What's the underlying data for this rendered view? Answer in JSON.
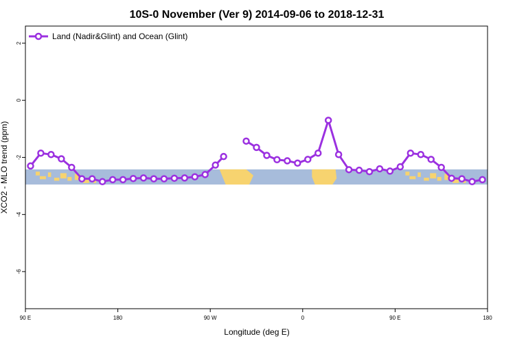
{
  "chart_data": {
    "type": "line",
    "title": "10S-0 November (Ver 9)   2014-09-06 to 2018-12-31",
    "xlabel": "Longitude (deg E)",
    "ylabel": "XCO2 - MLO trend (ppm)",
    "xlim": [
      90,
      540
    ],
    "ylim": [
      -7.3,
      2.6
    ],
    "x_ticks": [
      {
        "value": 90,
        "label": "90 E"
      },
      {
        "value": 180,
        "label": "180"
      },
      {
        "value": 270,
        "label": "90 W"
      },
      {
        "value": 360,
        "label": "0"
      },
      {
        "value": 450,
        "label": "90 E"
      },
      {
        "value": 540,
        "label": "180"
      }
    ],
    "y_ticks": [
      {
        "value": 2,
        "label": "2"
      },
      {
        "value": 0,
        "label": "0"
      },
      {
        "value": -2,
        "label": "-2"
      },
      {
        "value": -4,
        "label": "-4"
      },
      {
        "value": -6,
        "label": "-6"
      }
    ],
    "grid": false,
    "legend_position": "top-left",
    "map_band": {
      "y_top": -2.42,
      "y_bottom": -2.95
    },
    "series": [
      {
        "name": "Land (Nadir&Glint) and Ocean (Glint)",
        "color": "#9b30e0",
        "segments": [
          [
            {
              "x": 95,
              "y": -2.3
            },
            {
              "x": 105,
              "y": -1.85
            },
            {
              "x": 115,
              "y": -1.9
            },
            {
              "x": 125,
              "y": -2.05
            },
            {
              "x": 135,
              "y": -2.35
            },
            {
              "x": 145,
              "y": -2.75
            },
            {
              "x": 155,
              "y": -2.75
            },
            {
              "x": 165,
              "y": -2.85
            },
            {
              "x": 175,
              "y": -2.78
            },
            {
              "x": 185,
              "y": -2.78
            },
            {
              "x": 195,
              "y": -2.74
            },
            {
              "x": 205,
              "y": -2.72
            },
            {
              "x": 215,
              "y": -2.75
            },
            {
              "x": 225,
              "y": -2.75
            },
            {
              "x": 235,
              "y": -2.73
            },
            {
              "x": 245,
              "y": -2.72
            },
            {
              "x": 255,
              "y": -2.68
            },
            {
              "x": 265,
              "y": -2.6
            },
            {
              "x": 275,
              "y": -2.27
            },
            {
              "x": 283,
              "y": -1.97
            }
          ],
          [
            {
              "x": 305,
              "y": -1.43
            },
            {
              "x": 315,
              "y": -1.65
            },
            {
              "x": 325,
              "y": -1.93
            },
            {
              "x": 335,
              "y": -2.08
            },
            {
              "x": 345,
              "y": -2.12
            },
            {
              "x": 355,
              "y": -2.2
            },
            {
              "x": 365,
              "y": -2.07
            },
            {
              "x": 375,
              "y": -1.85
            },
            {
              "x": 385,
              "y": -0.7
            },
            {
              "x": 395,
              "y": -1.9
            },
            {
              "x": 405,
              "y": -2.43
            },
            {
              "x": 415,
              "y": -2.45
            },
            {
              "x": 425,
              "y": -2.5
            },
            {
              "x": 435,
              "y": -2.4
            },
            {
              "x": 445,
              "y": -2.48
            },
            {
              "x": 455,
              "y": -2.33
            },
            {
              "x": 465,
              "y": -1.85
            },
            {
              "x": 475,
              "y": -1.9
            },
            {
              "x": 485,
              "y": -2.07
            },
            {
              "x": 495,
              "y": -2.35
            },
            {
              "x": 505,
              "y": -2.73
            },
            {
              "x": 515,
              "y": -2.75
            },
            {
              "x": 525,
              "y": -2.85
            },
            {
              "x": 535,
              "y": -2.78
            }
          ]
        ]
      }
    ]
  }
}
